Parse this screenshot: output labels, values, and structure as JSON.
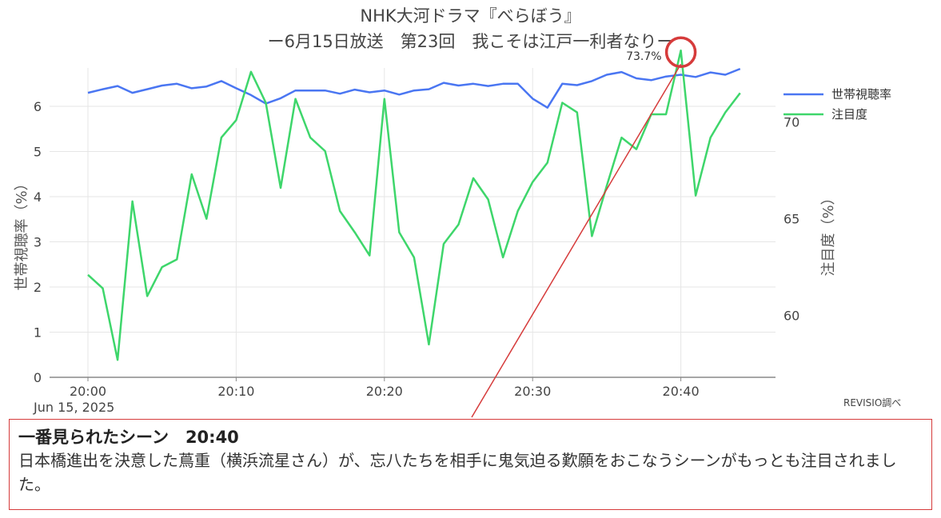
{
  "title_line1": "NHK大河ドラマ『べらぼう』",
  "title_line2": "ー6月15日放送　第23回　我こそは江戸一利者なりー",
  "source_note": "REVISIO調べ",
  "scene_box": {
    "heading": "一番見られたシーン　20:40",
    "body": "日本橋進出を決意した蔦重（横浜流星さん）が、忘八たちを相手に鬼気迫る歎願をおこなうシーンがもっとも注目されました。"
  },
  "colors": {
    "series1": "#4a76f2",
    "series2": "#3ed66b",
    "highlight": "#d63b3b"
  },
  "chart_data": {
    "type": "line",
    "x_start": "20:00",
    "x_ticks": [
      "20:00",
      "20:10",
      "20:20",
      "20:30",
      "20:40"
    ],
    "x_date_label": "Jun 15, 2025",
    "x_minutes": [
      0,
      1,
      2,
      3,
      4,
      5,
      6,
      7,
      8,
      9,
      10,
      11,
      12,
      13,
      14,
      15,
      16,
      17,
      18,
      19,
      20,
      21,
      22,
      23,
      24,
      25,
      26,
      27,
      28,
      29,
      30,
      31,
      32,
      33,
      34,
      35,
      36,
      37,
      38,
      39,
      40,
      41,
      42,
      43,
      44
    ],
    "ylabel_left": "世帯視聴率（%）",
    "ylabel_right": "注目度（%）",
    "y_left_ticks": [
      0,
      1,
      2,
      3,
      4,
      5,
      6
    ],
    "y_right_ticks": [
      60,
      65,
      70
    ],
    "y_left_range": [
      0,
      6.85
    ],
    "y_right_range": [
      56.8,
      72.8
    ],
    "grid": true,
    "legend_position": "top-right",
    "series": [
      {
        "name": "世帯視聴率",
        "axis": "left",
        "values": [
          6.3,
          6.38,
          6.45,
          6.3,
          6.38,
          6.46,
          6.5,
          6.4,
          6.44,
          6.56,
          6.4,
          6.25,
          6.06,
          6.18,
          6.35,
          6.35,
          6.35,
          6.28,
          6.37,
          6.31,
          6.35,
          6.26,
          6.35,
          6.38,
          6.52,
          6.46,
          6.5,
          6.45,
          6.5,
          6.5,
          6.17,
          5.97,
          6.5,
          6.47,
          6.56,
          6.7,
          6.76,
          6.62,
          6.58,
          6.66,
          6.7,
          6.65,
          6.75,
          6.7,
          6.83
        ]
      },
      {
        "name": "注目度",
        "axis": "right",
        "values": [
          62.1,
          61.4,
          57.7,
          65.9,
          61,
          62.5,
          62.9,
          67.3,
          65,
          69.2,
          70.1,
          72.6,
          71,
          66.6,
          71.2,
          69.2,
          68.5,
          65.4,
          64.3,
          63.1,
          71.2,
          64.3,
          63,
          58.5,
          63.7,
          64.7,
          67.1,
          66,
          63,
          65.4,
          66.9,
          67.9,
          71,
          70.5,
          64.1,
          66.7,
          69.2,
          68.6,
          70.4,
          70.4,
          73.7,
          66.2,
          69.2,
          70.5,
          71.5
        ]
      }
    ],
    "annotation": {
      "x_minute": 40,
      "text": "73.7%"
    }
  }
}
